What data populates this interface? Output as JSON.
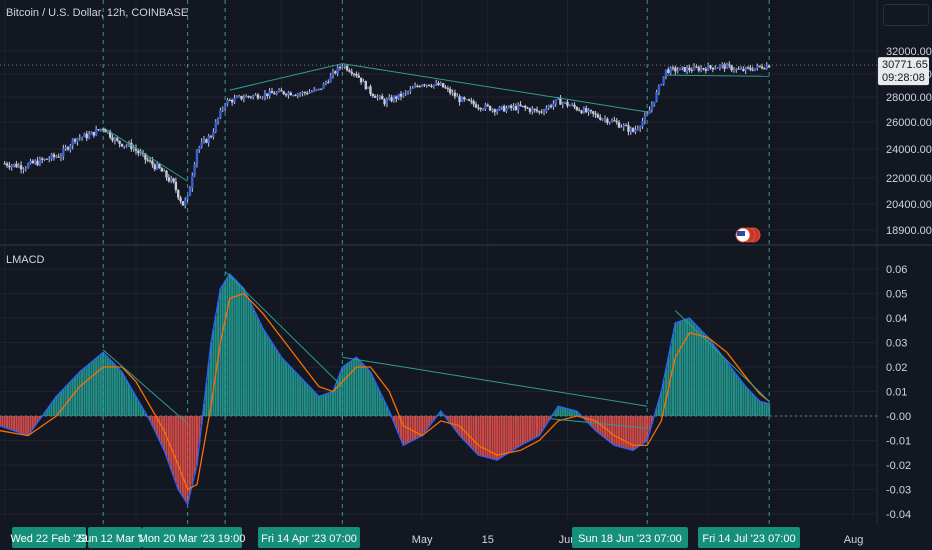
{
  "header": {
    "symbol_title": "Bitcoin / U.S. Dollar, 12h, COINBASE",
    "indicator_title": "LMACD"
  },
  "colors": {
    "background": "#131722",
    "grid": "#1f2330",
    "divider": "#2a2e39",
    "candle": "#3a5fd6",
    "wick": "#c9ccd3",
    "trendline": "#2f9e8a",
    "macd_line": "#2962ff",
    "signal_line": "#ff6d00",
    "hist_pos": "#26a69a",
    "hist_neg": "#ef5350",
    "price_tag": "#1e222d",
    "date_tag": "#168f7b"
  },
  "price_axis": {
    "ticks": [
      "32000.00",
      "30000.00",
      "28000.00",
      "26000.00",
      "24000.00",
      "22000.00",
      "20400.00",
      "18900.00"
    ],
    "current_price": "30771.65",
    "countdown": "09:28:08"
  },
  "macd_axis": {
    "ticks": [
      "0.06",
      "0.05",
      "0.04",
      "0.03",
      "0.02",
      "0.01",
      "-0.00",
      "-0.01",
      "-0.02",
      "-0.03",
      "-0.04"
    ]
  },
  "time_axis": {
    "labels": [
      "May",
      "15",
      "Jun",
      "Jul",
      "Aug"
    ],
    "date_tags": [
      "Wed 22 Feb '23",
      "Sun 12 Mar '23",
      "Mon 20 Mar '23",
      "19:00",
      "Fri 14 Apr '23",
      "07:00",
      "Sun 18 Jun '23",
      "07:00",
      "Fri 14 Jul '23",
      "07:00"
    ]
  },
  "icons": {
    "flag": "us-flag-icon"
  },
  "chart_data": [
    {
      "type": "candlestick",
      "title": "Bitcoin / U.S. Dollar, 12h, COINBASE",
      "ylim": [
        18900,
        32000
      ],
      "x_range": [
        "2023-01-31",
        "2023-08-06"
      ],
      "close_series": [
        [
          "2023-02-01",
          23000
        ],
        [
          "2023-02-05",
          22800
        ],
        [
          "2023-02-09",
          23200
        ],
        [
          "2023-02-13",
          23600
        ],
        [
          "2023-02-16",
          24800
        ],
        [
          "2023-02-19",
          25000
        ],
        [
          "2023-02-22",
          25600
        ],
        [
          "2023-02-25",
          24500
        ],
        [
          "2023-02-28",
          24200
        ],
        [
          "2023-03-03",
          23300
        ],
        [
          "2023-03-06",
          22600
        ],
        [
          "2023-03-09",
          21600
        ],
        [
          "2023-03-11",
          20400
        ],
        [
          "2023-03-12",
          20700
        ],
        [
          "2023-03-14",
          24000
        ],
        [
          "2023-03-17",
          25000
        ],
        [
          "2023-03-20",
          27600
        ],
        [
          "2023-03-24",
          28000
        ],
        [
          "2023-03-28",
          28200
        ],
        [
          "2023-04-01",
          28400
        ],
        [
          "2023-04-05",
          28300
        ],
        [
          "2023-04-09",
          28600
        ],
        [
          "2023-04-12",
          30000
        ],
        [
          "2023-04-14",
          30800
        ],
        [
          "2023-04-17",
          30000
        ],
        [
          "2023-04-20",
          28400
        ],
        [
          "2023-04-23",
          27600
        ],
        [
          "2023-04-27",
          28200
        ],
        [
          "2023-05-01",
          29200
        ],
        [
          "2023-05-05",
          29000
        ],
        [
          "2023-05-09",
          27800
        ],
        [
          "2023-05-13",
          27300
        ],
        [
          "2023-05-17",
          27000
        ],
        [
          "2023-05-22",
          27200
        ],
        [
          "2023-05-26",
          26800
        ],
        [
          "2023-05-30",
          27700
        ],
        [
          "2023-06-03",
          27100
        ],
        [
          "2023-06-07",
          26500
        ],
        [
          "2023-06-11",
          26000
        ],
        [
          "2023-06-15",
          25300
        ],
        [
          "2023-06-18",
          26500
        ],
        [
          "2023-06-20",
          28300
        ],
        [
          "2023-06-22",
          30300
        ],
        [
          "2023-06-26",
          30400
        ],
        [
          "2023-06-30",
          30500
        ],
        [
          "2023-07-04",
          30700
        ],
        [
          "2023-07-08",
          30300
        ],
        [
          "2023-07-12",
          30600
        ],
        [
          "2023-07-14",
          30772
        ]
      ],
      "trendlines": [
        [
          [
            "2023-02-22",
            25600
          ],
          [
            "2023-03-12",
            21800
          ]
        ],
        [
          [
            "2023-03-21",
            28600
          ],
          [
            "2023-04-14",
            30900
          ]
        ],
        [
          [
            "2023-04-14",
            30900
          ],
          [
            "2023-06-18",
            26800
          ]
        ],
        [
          [
            "2023-06-22",
            29900
          ],
          [
            "2023-07-14",
            29800
          ]
        ]
      ]
    },
    {
      "type": "line",
      "title": "LMACD",
      "ylim": [
        -0.04,
        0.06
      ],
      "series": [
        {
          "values": [
            [
              "2023-01-31",
              -0.004
            ],
            [
              "2023-02-06",
              -0.008
            ],
            [
              "2023-02-12",
              0.008
            ],
            [
              "2023-02-17",
              0.018
            ],
            [
              "2023-02-22",
              0.026
            ],
            [
              "2023-02-26",
              0.018
            ],
            [
              "2023-03-01",
              0.008
            ],
            [
              "2023-03-04",
              -0.002
            ],
            [
              "2023-03-07",
              -0.014
            ],
            [
              "2023-03-10",
              -0.03
            ],
            [
              "2023-03-12",
              -0.036
            ],
            [
              "2023-03-14",
              -0.02
            ],
            [
              "2023-03-17",
              0.03
            ],
            [
              "2023-03-19",
              0.052
            ],
            [
              "2023-03-21",
              0.058
            ],
            [
              "2023-03-24",
              0.052
            ],
            [
              "2023-03-28",
              0.036
            ],
            [
              "2023-04-01",
              0.024
            ],
            [
              "2023-04-05",
              0.016
            ],
            [
              "2023-04-09",
              0.008
            ],
            [
              "2023-04-12",
              0.01
            ],
            [
              "2023-04-14",
              0.02
            ],
            [
              "2023-04-17",
              0.024
            ],
            [
              "2023-04-20",
              0.018
            ],
            [
              "2023-04-24",
              0.002
            ],
            [
              "2023-04-27",
              -0.012
            ],
            [
              "2023-05-01",
              -0.008
            ],
            [
              "2023-05-05",
              0.002
            ],
            [
              "2023-05-09",
              -0.008
            ],
            [
              "2023-05-13",
              -0.016
            ],
            [
              "2023-05-17",
              -0.018
            ],
            [
              "2023-05-22",
              -0.012
            ],
            [
              "2023-05-26",
              -0.008
            ],
            [
              "2023-05-30",
              0.004
            ],
            [
              "2023-06-03",
              0.002
            ],
            [
              "2023-06-07",
              -0.006
            ],
            [
              "2023-06-11",
              -0.012
            ],
            [
              "2023-06-15",
              -0.014
            ],
            [
              "2023-06-18",
              -0.01
            ],
            [
              "2023-06-21",
              0.01
            ],
            [
              "2023-06-24",
              0.038
            ],
            [
              "2023-06-27",
              0.04
            ],
            [
              "2023-07-01",
              0.032
            ],
            [
              "2023-07-05",
              0.022
            ],
            [
              "2023-07-09",
              0.012
            ],
            [
              "2023-07-12",
              0.006
            ],
            [
              "2023-07-14",
              0.005
            ]
          ]
        },
        {
          "values": [
            [
              "2023-01-31",
              -0.006
            ],
            [
              "2023-02-06",
              -0.008
            ],
            [
              "2023-02-12",
              0.0
            ],
            [
              "2023-02-17",
              0.012
            ],
            [
              "2023-02-22",
              0.02
            ],
            [
              "2023-02-26",
              0.02
            ],
            [
              "2023-03-01",
              0.014
            ],
            [
              "2023-03-04",
              0.004
            ],
            [
              "2023-03-07",
              -0.006
            ],
            [
              "2023-03-10",
              -0.02
            ],
            [
              "2023-03-12",
              -0.03
            ],
            [
              "2023-03-14",
              -0.028
            ],
            [
              "2023-03-17",
              0.004
            ],
            [
              "2023-03-19",
              0.03
            ],
            [
              "2023-03-21",
              0.048
            ],
            [
              "2023-03-24",
              0.05
            ],
            [
              "2023-03-28",
              0.042
            ],
            [
              "2023-04-01",
              0.032
            ],
            [
              "2023-04-05",
              0.022
            ],
            [
              "2023-04-09",
              0.012
            ],
            [
              "2023-04-12",
              0.01
            ],
            [
              "2023-04-14",
              0.014
            ],
            [
              "2023-04-17",
              0.02
            ],
            [
              "2023-04-20",
              0.02
            ],
            [
              "2023-04-24",
              0.01
            ],
            [
              "2023-04-27",
              -0.004
            ],
            [
              "2023-05-01",
              -0.008
            ],
            [
              "2023-05-05",
              -0.002
            ],
            [
              "2023-05-09",
              -0.004
            ],
            [
              "2023-05-13",
              -0.012
            ],
            [
              "2023-05-17",
              -0.016
            ],
            [
              "2023-05-22",
              -0.014
            ],
            [
              "2023-05-26",
              -0.01
            ],
            [
              "2023-05-30",
              -0.002
            ],
            [
              "2023-06-03",
              0.0
            ],
            [
              "2023-06-07",
              -0.002
            ],
            [
              "2023-06-11",
              -0.008
            ],
            [
              "2023-06-15",
              -0.012
            ],
            [
              "2023-06-18",
              -0.012
            ],
            [
              "2023-06-21",
              -0.002
            ],
            [
              "2023-06-24",
              0.024
            ],
            [
              "2023-06-27",
              0.034
            ],
            [
              "2023-07-01",
              0.032
            ],
            [
              "2023-07-05",
              0.026
            ],
            [
              "2023-07-09",
              0.016
            ],
            [
              "2023-07-12",
              0.009
            ],
            [
              "2023-07-14",
              0.006
            ]
          ]
        }
      ],
      "trendlines": [
        [
          [
            "2023-02-22",
            0.027
          ],
          [
            "2023-03-12",
            -0.003
          ]
        ],
        [
          [
            "2023-03-20",
            0.059
          ],
          [
            "2023-04-14",
            0.012
          ]
        ],
        [
          [
            "2023-04-14",
            0.024
          ],
          [
            "2023-06-18",
            0.004
          ]
        ],
        [
          [
            "2023-06-24",
            0.043
          ],
          [
            "2023-07-14",
            0.006
          ]
        ],
        [
          [
            "2023-05-28",
            -0.001
          ],
          [
            "2023-06-18",
            -0.005
          ]
        ]
      ],
      "vertical_markers": [
        "2023-02-22",
        "2023-03-12",
        "2023-03-20",
        "2023-04-14",
        "2023-06-18",
        "2023-07-14"
      ]
    }
  ]
}
